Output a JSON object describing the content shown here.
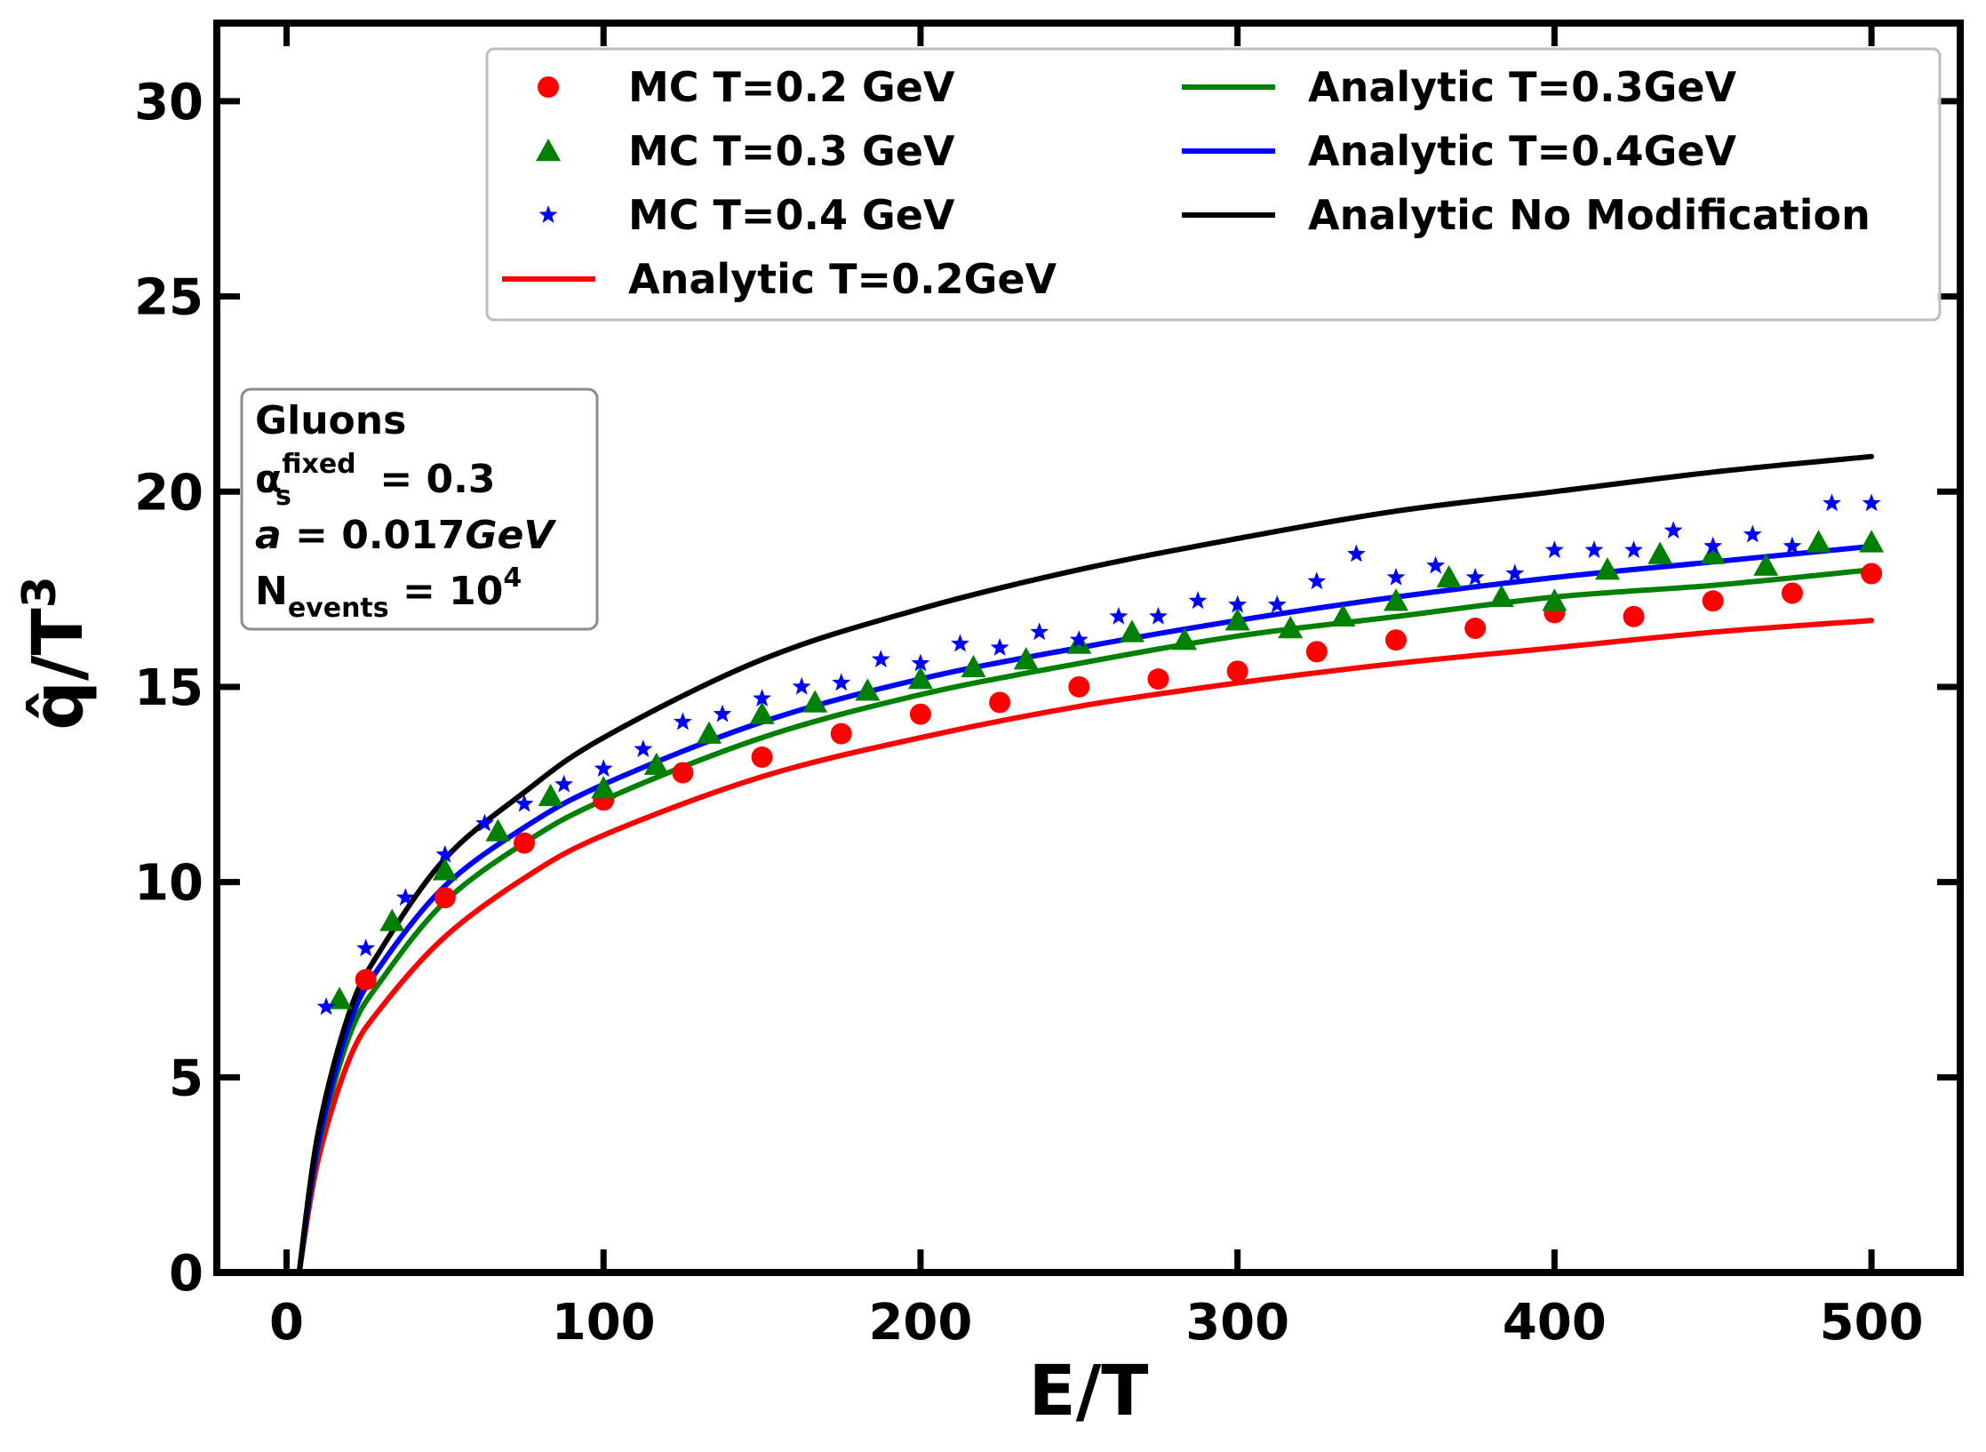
{
  "chart_data": {
    "type": "scatter",
    "title": "",
    "xlabel": "E/T",
    "ylabel_main": "q̂/T",
    "ylabel_sup": "3",
    "xlim": [
      -22,
      528
    ],
    "ylim": [
      0,
      32
    ],
    "xticks": [
      0,
      100,
      200,
      300,
      400,
      500
    ],
    "yticks": [
      0,
      5,
      10,
      15,
      20,
      25,
      30
    ],
    "legend_position": "top-right",
    "series": [
      {
        "name": "MC T=0.2 GeV",
        "kind": "markers",
        "marker": "circle",
        "color": "#ff0000",
        "x": [
          25,
          50,
          75,
          100,
          125,
          150,
          175,
          200,
          225,
          250,
          275,
          300,
          325,
          350,
          375,
          400,
          425,
          450,
          475,
          500
        ],
        "y": [
          7.5,
          9.6,
          11.0,
          12.1,
          12.8,
          13.2,
          13.8,
          14.3,
          14.6,
          15.0,
          15.2,
          15.4,
          15.9,
          16.2,
          16.5,
          16.9,
          16.8,
          17.2,
          17.4,
          17.9
        ]
      },
      {
        "name": "MC T=0.3 GeV",
        "kind": "markers",
        "marker": "triangle",
        "color": "#008000",
        "x": [
          16.7,
          33.3,
          50,
          66.7,
          83.3,
          100,
          116.7,
          133.3,
          150,
          166.7,
          183.3,
          200,
          216.7,
          233.3,
          250,
          266.7,
          283.3,
          300,
          316.7,
          333.3,
          350,
          366.7,
          383.3,
          400,
          416.7,
          433.3,
          450,
          466.7,
          483.3,
          500
        ],
        "y": [
          7.0,
          9.0,
          10.3,
          11.3,
          12.2,
          12.4,
          13.0,
          13.8,
          14.3,
          14.6,
          14.9,
          15.2,
          15.5,
          15.7,
          16.1,
          16.4,
          16.2,
          16.7,
          16.5,
          16.8,
          17.2,
          17.8,
          17.3,
          17.2,
          18.0,
          18.4,
          18.4,
          18.1,
          18.7,
          18.7
        ]
      },
      {
        "name": "MC T=0.4 GeV",
        "kind": "markers",
        "marker": "star",
        "color": "#0000ff",
        "x": [
          12.5,
          25,
          37.5,
          50,
          62.5,
          75,
          87.5,
          100,
          112.5,
          125,
          137.5,
          150,
          162.5,
          175,
          187.5,
          200,
          212.5,
          225,
          237.5,
          250,
          262.5,
          275,
          287.5,
          300,
          312.5,
          325,
          337.5,
          350,
          362.5,
          375,
          387.5,
          400,
          412.5,
          425,
          437.5,
          450,
          462.5,
          475,
          487.5,
          500
        ],
        "y": [
          6.8,
          8.3,
          9.6,
          10.7,
          11.5,
          12.0,
          12.5,
          12.9,
          13.4,
          14.1,
          14.3,
          14.7,
          15.0,
          15.1,
          15.7,
          15.6,
          16.1,
          16.0,
          16.4,
          16.2,
          16.8,
          16.8,
          17.2,
          17.1,
          17.1,
          17.7,
          18.4,
          17.8,
          18.1,
          17.8,
          17.9,
          18.5,
          18.5,
          18.5,
          19.0,
          18.6,
          18.9,
          18.6,
          19.7,
          19.7
        ]
      },
      {
        "name": "Analytic T=0.2GeV",
        "kind": "line",
        "color": "#ff0000",
        "x": [
          4,
          10,
          20,
          30,
          50,
          75,
          100,
          150,
          200,
          250,
          300,
          350,
          400,
          450,
          500
        ],
        "y": [
          0,
          2.9,
          5.5,
          6.8,
          8.6,
          10.1,
          11.2,
          12.7,
          13.7,
          14.5,
          15.1,
          15.6,
          16.0,
          16.4,
          16.7
        ]
      },
      {
        "name": "Analytic T=0.3GeV",
        "kind": "line",
        "color": "#008000",
        "x": [
          4,
          10,
          20,
          30,
          50,
          75,
          100,
          150,
          200,
          250,
          300,
          350,
          400,
          450,
          500
        ],
        "y": [
          0,
          3.2,
          6.1,
          7.5,
          9.5,
          11.0,
          12.1,
          13.7,
          14.8,
          15.6,
          16.3,
          16.8,
          17.3,
          17.6,
          18.0
        ]
      },
      {
        "name": "Analytic T=0.4GeV",
        "kind": "line",
        "color": "#0000ff",
        "x": [
          4,
          10,
          20,
          30,
          50,
          75,
          100,
          150,
          200,
          250,
          300,
          350,
          400,
          450,
          500
        ],
        "y": [
          0,
          3.3,
          6.4,
          7.9,
          9.9,
          11.4,
          12.5,
          14.1,
          15.2,
          16.0,
          16.7,
          17.3,
          17.8,
          18.2,
          18.6
        ]
      },
      {
        "name": "Analytic No Modification",
        "kind": "line",
        "color": "#000000",
        "x": [
          4,
          10,
          20,
          30,
          50,
          75,
          100,
          150,
          200,
          250,
          300,
          350,
          400,
          450,
          500
        ],
        "y": [
          0,
          3.6,
          6.7,
          8.3,
          10.6,
          12.3,
          13.7,
          15.7,
          17.0,
          18.0,
          18.8,
          19.5,
          20.0,
          20.5,
          20.9
        ]
      }
    ],
    "legend_order": [
      0,
      1,
      2,
      3,
      4,
      5,
      6
    ],
    "annotation": {
      "line1": "Gluons",
      "alpha_sym": "α",
      "alpha_sup": "fixed",
      "alpha_sub": "s",
      "alpha_rhs": " = 0.3",
      "a_sym": "a",
      "a_rhs": " = 0.017",
      "a_unit": "GeV",
      "n_sym": "N",
      "n_sub": "events",
      "n_rhs": " = 10",
      "n_sup": "4"
    }
  }
}
